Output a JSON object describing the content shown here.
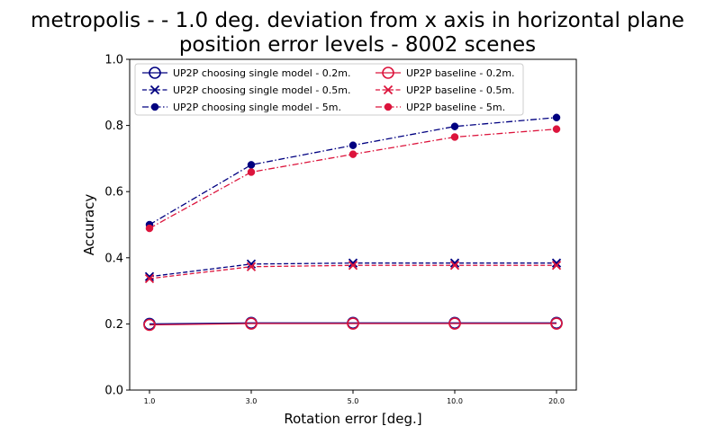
{
  "chart_data": {
    "type": "line",
    "title_lines": [
      "metropolis -  - 1.0 deg. deviation from x axis in horizontal plane",
      "position error levels - 8002 scenes"
    ],
    "xlabel": "Rotation error [deg.]",
    "ylabel": "Accuracy",
    "categories": [
      "1.0",
      "3.0",
      "5.0",
      "10.0",
      "20.0"
    ],
    "ylim": [
      0,
      1.0
    ],
    "yticks": [
      "0.0",
      "0.2",
      "0.4",
      "0.6",
      "0.8",
      "1.0"
    ],
    "grid": false,
    "legend_position": "top-left",
    "series": [
      {
        "name": "UP2P choosing single model - 0.2m.",
        "color": "#000080",
        "linestyle": "solid",
        "marker": "open-circle",
        "values": [
          0.2,
          0.203,
          0.203,
          0.203,
          0.203
        ]
      },
      {
        "name": "UP2P choosing single model - 0.5m.",
        "color": "#000080",
        "linestyle": "dashed",
        "marker": "x",
        "values": [
          0.343,
          0.381,
          0.384,
          0.384,
          0.384
        ]
      },
      {
        "name": "UP2P choosing single model - 5m.",
        "color": "#000080",
        "linestyle": "dashdot",
        "marker": "filled-circle",
        "values": [
          0.5,
          0.681,
          0.74,
          0.797,
          0.824
        ]
      },
      {
        "name": "UP2P baseline - 0.2m.",
        "color": "#dc143c",
        "linestyle": "solid",
        "marker": "open-circle",
        "values": [
          0.197,
          0.201,
          0.201,
          0.201,
          0.201
        ]
      },
      {
        "name": "UP2P baseline - 0.5m.",
        "color": "#dc143c",
        "linestyle": "dashed",
        "marker": "x",
        "values": [
          0.337,
          0.373,
          0.377,
          0.377,
          0.377
        ]
      },
      {
        "name": "UP2P baseline - 5m.",
        "color": "#dc143c",
        "linestyle": "dashdot",
        "marker": "filled-circle",
        "values": [
          0.489,
          0.659,
          0.713,
          0.765,
          0.789
        ]
      }
    ]
  }
}
